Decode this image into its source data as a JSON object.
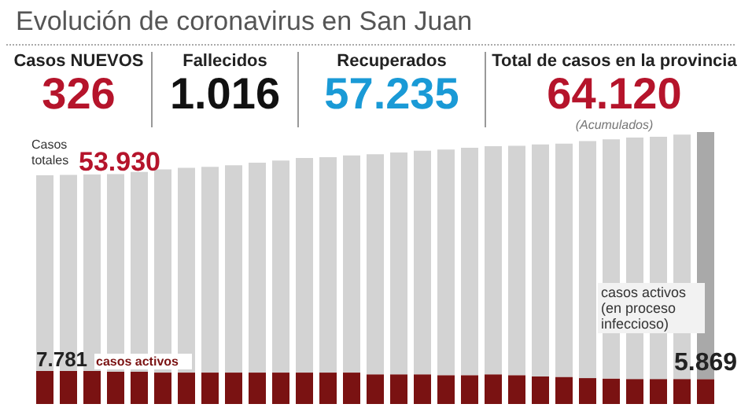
{
  "chart_data": [
    {
      "type": "other",
      "title": "Evolución de coronavirus en San Juan",
      "categories": [
        "Casos NUEVOS",
        "Fallecidos",
        "Recuperados",
        "Total de casos en la provincia"
      ],
      "value_labels": [
        "326",
        "1.016",
        "57.235",
        "64.120"
      ],
      "colors": [
        "#b5142b",
        "#111111",
        "#1a9ad6",
        "#b5142b"
      ],
      "annotations": [
        "(Acumulados)"
      ]
    },
    {
      "type": "bar",
      "stacked": true,
      "tick_labels": false,
      "categories": [
        null,
        null,
        null,
        null,
        null,
        null,
        null,
        null,
        null,
        null,
        null,
        null,
        null,
        null,
        null,
        null,
        null,
        null,
        null,
        null,
        null,
        null,
        null,
        null,
        null,
        null,
        null,
        null,
        null
      ],
      "series": [
        {
          "name": "casos activos",
          "color": "#7a1212",
          "values": [
            7781,
            7800,
            7800,
            7600,
            7600,
            7400,
            7400,
            7400,
            7400,
            7400,
            7400,
            7400,
            7400,
            7400,
            7000,
            7000,
            7000,
            6800,
            6800,
            7000,
            6800,
            6500,
            6400,
            6100,
            6000,
            5900,
            5900,
            5900,
            5869
          ],
          "value_labels": [
            "7.781",
            null,
            null,
            null,
            null,
            null,
            null,
            null,
            null,
            null,
            null,
            null,
            null,
            null,
            null,
            null,
            null,
            null,
            null,
            null,
            null,
            null,
            null,
            null,
            null,
            null,
            null,
            null,
            "5.869"
          ]
        },
        {
          "name": "Casos totales",
          "color": "#d3d3d3",
          "colors": [
            "#d3d3d3",
            "#d3d3d3",
            "#d3d3d3",
            "#d3d3d3",
            "#d3d3d3",
            "#d3d3d3",
            "#d3d3d3",
            "#d3d3d3",
            "#d3d3d3",
            "#d3d3d3",
            "#d3d3d3",
            "#d3d3d3",
            "#d3d3d3",
            "#d3d3d3",
            "#d3d3d3",
            "#d3d3d3",
            "#d3d3d3",
            "#d3d3d3",
            "#d3d3d3",
            "#d3d3d3",
            "#d3d3d3",
            "#d3d3d3",
            "#d3d3d3",
            "#d3d3d3",
            "#d3d3d3",
            "#d3d3d3",
            "#d3d3d3",
            "#d3d3d3",
            "#a9a9a9"
          ],
          "values": [
            46149,
            46200,
            46300,
            46600,
            47100,
            47900,
            48300,
            48500,
            48900,
            49500,
            50000,
            50600,
            50800,
            51200,
            51900,
            52300,
            52700,
            53200,
            53600,
            53800,
            54100,
            54700,
            55000,
            55900,
            56400,
            56900,
            57100,
            57600,
            58251
          ]
        }
      ],
      "totals": [
        "53.930",
        null,
        null,
        null,
        null,
        null,
        null,
        null,
        null,
        null,
        null,
        null,
        null,
        null,
        null,
        null,
        null,
        null,
        null,
        null,
        null,
        null,
        null,
        null,
        null,
        null,
        null,
        null,
        null
      ],
      "annotations": [
        "casos activos (en proceso infeccioso)"
      ]
    }
  ]
}
